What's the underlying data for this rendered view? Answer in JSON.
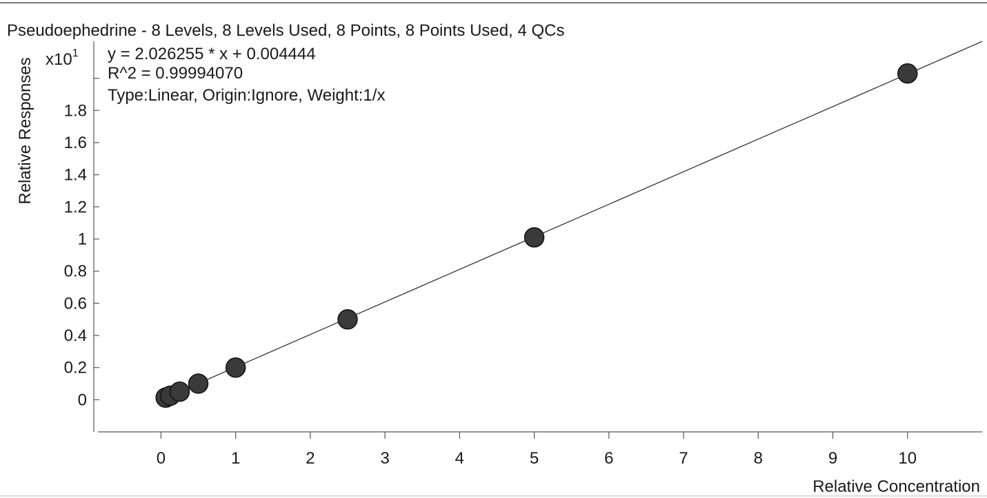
{
  "chart_data": {
    "type": "scatter",
    "title": "Pseudoephedrine - 8 Levels, 8 Levels Used, 8 Points, 8 Points Used, 4 QCs",
    "equation": "y = 2.026255 * x  + 0.004444",
    "r_squared": "R^2 = 0.99994070",
    "fit_info": "Type:Linear, Origin:Ignore, Weight:1/x",
    "xlabel": "Relative Concentration",
    "ylabel": "Relative Responses",
    "y_multiplier": {
      "base": "x10",
      "exponent": "1"
    },
    "xlim": [
      -0.9,
      11.0
    ],
    "ylim": [
      -0.2,
      2.23
    ],
    "x_ticks": [
      0,
      1,
      2,
      3,
      4,
      5,
      6,
      7,
      8,
      9,
      10
    ],
    "x_tick_labels": [
      "0",
      "1",
      "2",
      "3",
      "4",
      "5",
      "6",
      "7",
      "8",
      "9",
      "10"
    ],
    "y_ticks": [
      0,
      0.2,
      0.4,
      0.6,
      0.8,
      1,
      1.2,
      1.4,
      1.6,
      1.8,
      2.0
    ],
    "y_tick_labels": [
      "0",
      "0.2",
      "0.4",
      "0.6",
      "0.8",
      "1",
      "1.2",
      "1.4",
      "1.6",
      "1.8",
      ""
    ],
    "fit_line": {
      "slope": 0.2026255,
      "intercept": 0.0004444
    },
    "grid": false,
    "series": [
      {
        "x": [
          0.0625,
          0.125,
          0.25,
          0.5,
          1,
          2.5,
          5,
          10
        ],
        "y": [
          0.013,
          0.025,
          0.05,
          0.1,
          0.2,
          0.5,
          1.01,
          2.03
        ]
      }
    ],
    "colors": {
      "marker": "#3a3a3a",
      "marker_stroke": "#111111",
      "line": "#333333",
      "axis": "#555555"
    }
  }
}
